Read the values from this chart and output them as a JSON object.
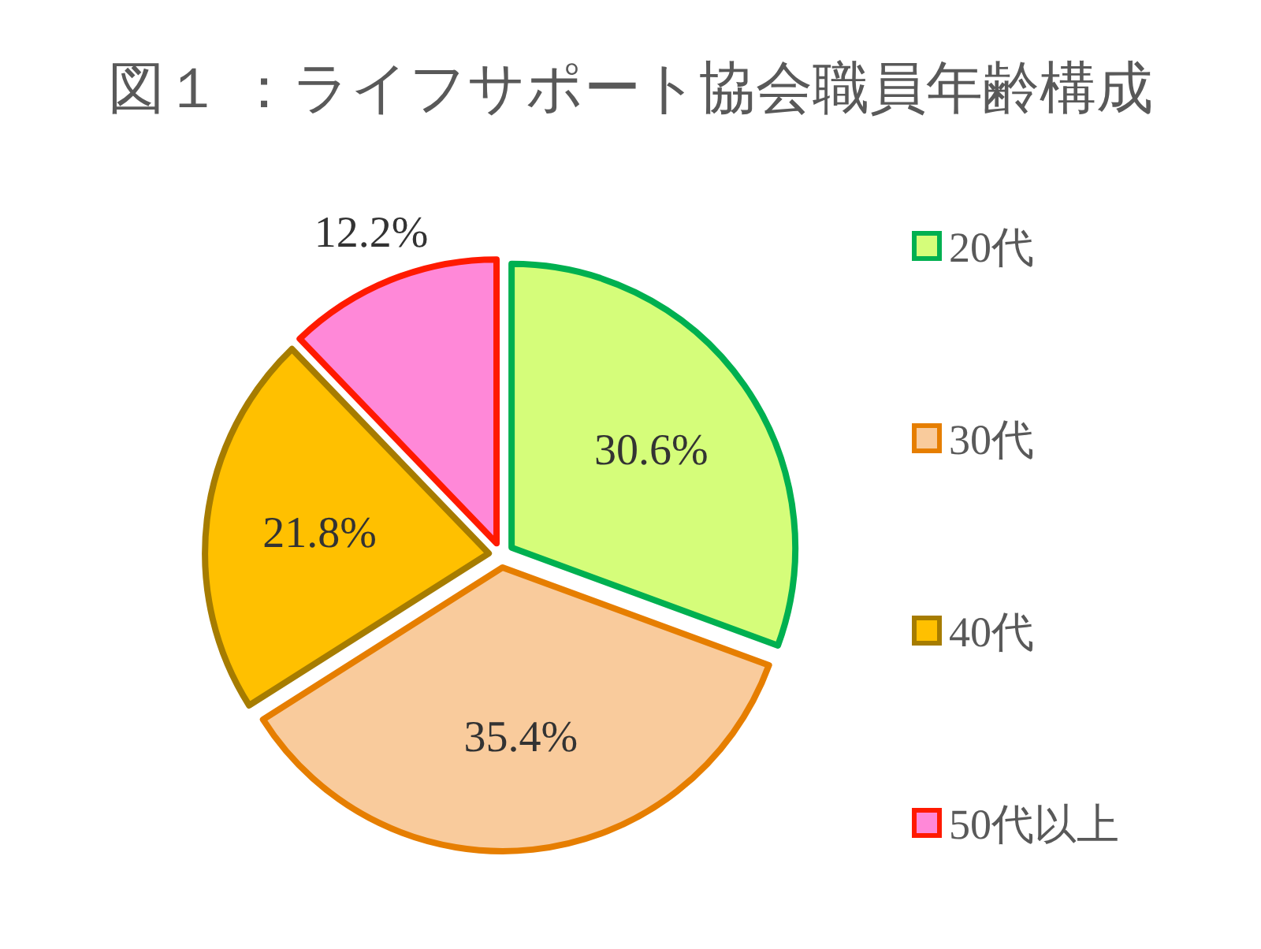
{
  "chart_data": {
    "type": "pie",
    "title": "図１ ：ライフサポート協会職員年齢構成",
    "categories": [
      "20代",
      "30代",
      "40代",
      "50代以上"
    ],
    "values": [
      30.6,
      35.4,
      21.8,
      12.2
    ],
    "colors": [
      "#d5fd7a",
      "#f9cb9c",
      "#ffc000",
      "#ff88d8"
    ],
    "value_labels": [
      "30.6%",
      "35.4%",
      "21.8%",
      "12.2%"
    ],
    "legend": "right"
  }
}
